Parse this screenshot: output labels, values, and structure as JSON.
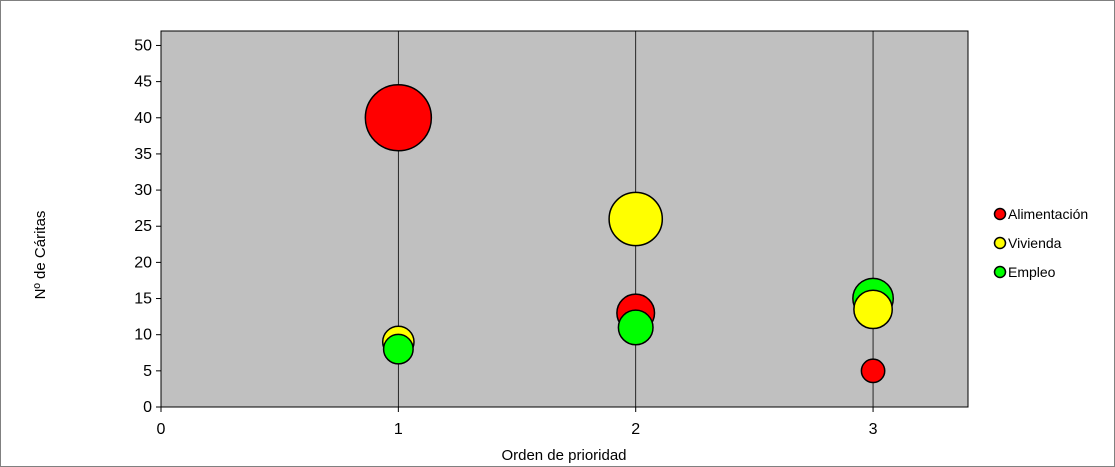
{
  "chart_data": {
    "type": "scatter",
    "subtype": "bubble",
    "title": "",
    "xlabel": "Orden de prioridad",
    "ylabel": "Nº de Cáritas",
    "xlim": [
      0,
      3.4
    ],
    "ylim": [
      0,
      52
    ],
    "xticks": [
      0,
      1,
      2,
      3
    ],
    "yticks": [
      0,
      5,
      10,
      15,
      20,
      25,
      30,
      35,
      40,
      45,
      50
    ],
    "xtick_labels": [
      "0",
      "1",
      "2",
      "3"
    ],
    "ytick_labels": [
      "0",
      "5",
      "10",
      "15",
      "20",
      "25",
      "30",
      "35",
      "40",
      "45",
      "50"
    ],
    "grid": "vertical",
    "legend_position": "right",
    "plot_background": "#C0C0C0",
    "series": [
      {
        "name": "Alimentación",
        "color": "#FF0000",
        "points": [
          {
            "x": 1,
            "y": 40,
            "size": 40
          },
          {
            "x": 2,
            "y": 13,
            "size": 13
          },
          {
            "x": 3,
            "y": 5,
            "size": 5
          }
        ]
      },
      {
        "name": "Vivienda",
        "color": "#FFFF00",
        "points": [
          {
            "x": 1,
            "y": 9,
            "size": 9
          },
          {
            "x": 2,
            "y": 26,
            "size": 26
          },
          {
            "x": 3,
            "y": 13.5,
            "size": 13.5
          }
        ]
      },
      {
        "name": "Empleo",
        "color": "#00FF00",
        "points": [
          {
            "x": 1,
            "y": 8,
            "size": 8
          },
          {
            "x": 2,
            "y": 11,
            "size": 11
          },
          {
            "x": 3,
            "y": 15,
            "size": 15
          }
        ]
      }
    ]
  }
}
